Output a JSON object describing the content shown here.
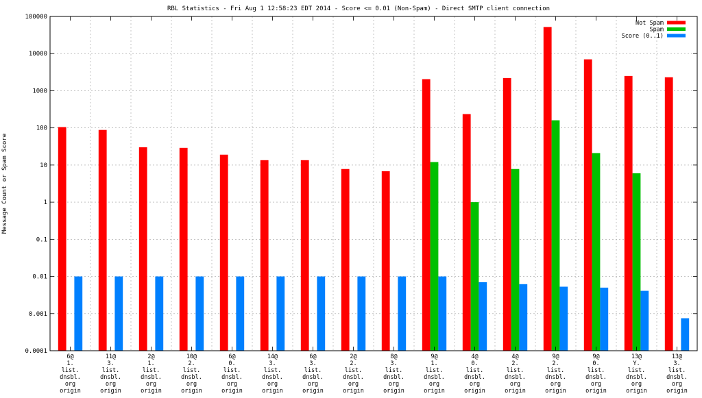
{
  "chart_data": {
    "type": "bar",
    "title": "RBL Statistics - Fri Aug  1 12:58:23 EDT 2014 - Score <= 0.01 (Non-Spam) - Direct SMTP client connection",
    "xlabel": "",
    "ylabel": "Message Count or Spam Score",
    "yscale": "log",
    "ylim": [
      0.0001,
      100000
    ],
    "y_ticks": [
      "0.0001",
      "0.001",
      "0.01",
      "0.1",
      "1",
      "10",
      "100",
      "1000",
      "10000",
      "100000"
    ],
    "grid": true,
    "legend_position": "top-right",
    "categories": [
      [
        "6@",
        "1.",
        "list.",
        "dnsbl.",
        "org",
        "origin"
      ],
      [
        "11@",
        "3.",
        "list.",
        "dnsbl.",
        "org",
        "origin"
      ],
      [
        "2@",
        "1.",
        "list.",
        "dnsbl.",
        "org",
        "origin"
      ],
      [
        "10@",
        "2.",
        "list.",
        "dnsbl.",
        "org",
        "origin"
      ],
      [
        "6@",
        "0.",
        "list.",
        "dnsbl.",
        "org",
        "origin"
      ],
      [
        "14@",
        "3.",
        "list.",
        "dnsbl.",
        "org",
        "origin"
      ],
      [
        "6@",
        "3.",
        "list.",
        "dnsbl.",
        "org",
        "origin"
      ],
      [
        "2@",
        "2.",
        "list.",
        "dnsbl.",
        "org",
        "origin"
      ],
      [
        "8@",
        "3.",
        "list.",
        "dnsbl.",
        "org",
        "origin"
      ],
      [
        "9@",
        "1.",
        "list.",
        "dnsbl.",
        "org",
        "origin"
      ],
      [
        "4@",
        "0.",
        "list.",
        "dnsbl.",
        "org",
        "origin"
      ],
      [
        "4@",
        "2.",
        "list.",
        "dnsbl.",
        "org",
        "origin"
      ],
      [
        "9@",
        "2.",
        "list.",
        "dnsbl.",
        "org",
        "origin"
      ],
      [
        "9@",
        "0.",
        "list.",
        "dnsbl.",
        "org",
        "origin"
      ],
      [
        "13@",
        "Y.",
        "list.",
        "dnsbl.",
        "org",
        "origin"
      ],
      [
        "13@",
        "3.",
        "list.",
        "dnsbl.",
        "org",
        "origin"
      ]
    ],
    "series": [
      {
        "name": "Not Spam",
        "color": "#ff0000",
        "values": [
          105,
          88,
          30,
          29,
          19,
          13.5,
          13.5,
          7.8,
          6.8,
          2050,
          235,
          2200,
          52000,
          7000,
          2500,
          2300
        ]
      },
      {
        "name": "Spam",
        "color": "#00c000",
        "values": [
          null,
          null,
          null,
          null,
          null,
          null,
          null,
          null,
          null,
          12,
          1,
          7.8,
          160,
          21,
          6,
          null
        ]
      },
      {
        "name": "Score (0..1)",
        "color": "#0080ff",
        "values": [
          0.01,
          0.01,
          0.01,
          0.01,
          0.01,
          0.01,
          0.01,
          0.01,
          0.01,
          0.01,
          0.007,
          0.0062,
          0.0053,
          0.005,
          0.0041,
          0.00075
        ]
      }
    ]
  }
}
